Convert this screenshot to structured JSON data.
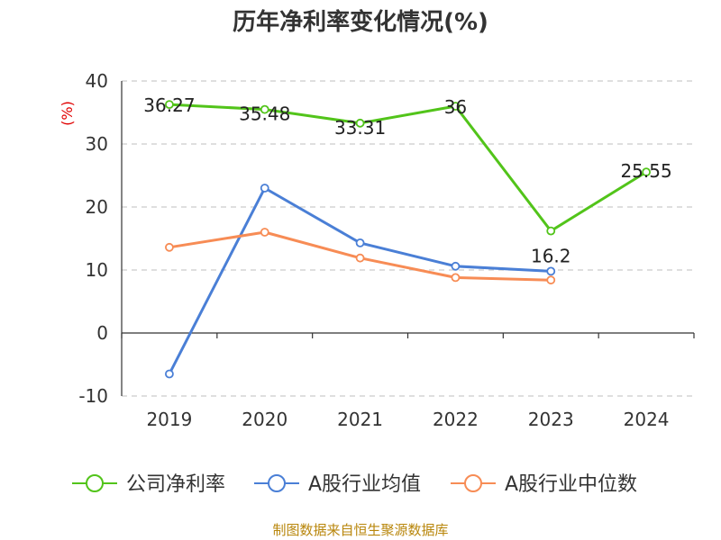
{
  "chart_data": {
    "type": "line",
    "title": "历年净利率变化情况(%)",
    "ylabel": "(%)",
    "categories": [
      "2019",
      "2020",
      "2021",
      "2022",
      "2023",
      "2024"
    ],
    "ylim": [
      -10,
      40
    ],
    "yticks": [
      "-10",
      "0",
      "10",
      "20",
      "30",
      "40"
    ],
    "grid": true,
    "legend_position": "bottom",
    "series": [
      {
        "name": "公司净利率",
        "color": "#52c41a",
        "values": [
          36.27,
          35.48,
          33.31,
          36,
          16.2,
          25.55
        ],
        "labels": [
          "36.27",
          "35.48",
          "33.31",
          "36",
          "16.2",
          "25.55"
        ]
      },
      {
        "name": "A股行业均值",
        "color": "#4a7fd6",
        "values": [
          -6.5,
          23.0,
          14.3,
          10.6,
          9.8,
          null
        ]
      },
      {
        "name": "A股行业中位数",
        "color": "#f78c55",
        "values": [
          13.6,
          16.0,
          11.9,
          8.8,
          8.4,
          null
        ]
      }
    ],
    "source": "制图数据来自恒生聚源数据库"
  }
}
